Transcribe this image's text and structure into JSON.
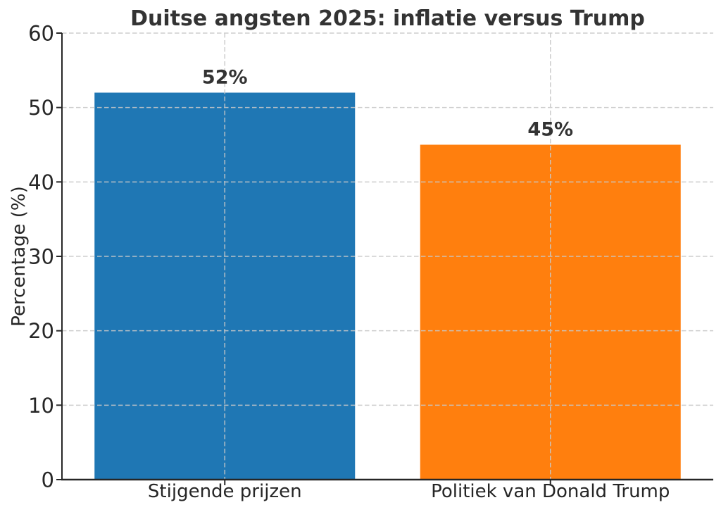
{
  "chart_data": {
    "type": "bar",
    "title": "Duitse angsten 2025: inflatie versus Trump",
    "categories": [
      "Stijgende prijzen",
      "Politiek van Donald Trump"
    ],
    "values": [
      52,
      45
    ],
    "value_labels": [
      "52%",
      "45%"
    ],
    "bar_colors": [
      "#1f77b4",
      "#ff7f0e"
    ],
    "xlabel": "",
    "ylabel": "Percentage (%)",
    "ylim": [
      0,
      60
    ],
    "yticks": [
      0,
      10,
      20,
      30,
      40,
      50,
      60
    ],
    "grid": {
      "style": "dashed",
      "axes": "both",
      "color": "#c8c8c8",
      "drawn_above_bars": true,
      "vertical_lines_at": "category centers"
    },
    "legend": null,
    "spines": [
      "left",
      "bottom"
    ],
    "colors": {
      "title_text": "#333333",
      "value_label_text": "#333333",
      "tick_text": "#262626",
      "axis_line": "#262626",
      "background": "#ffffff"
    }
  }
}
